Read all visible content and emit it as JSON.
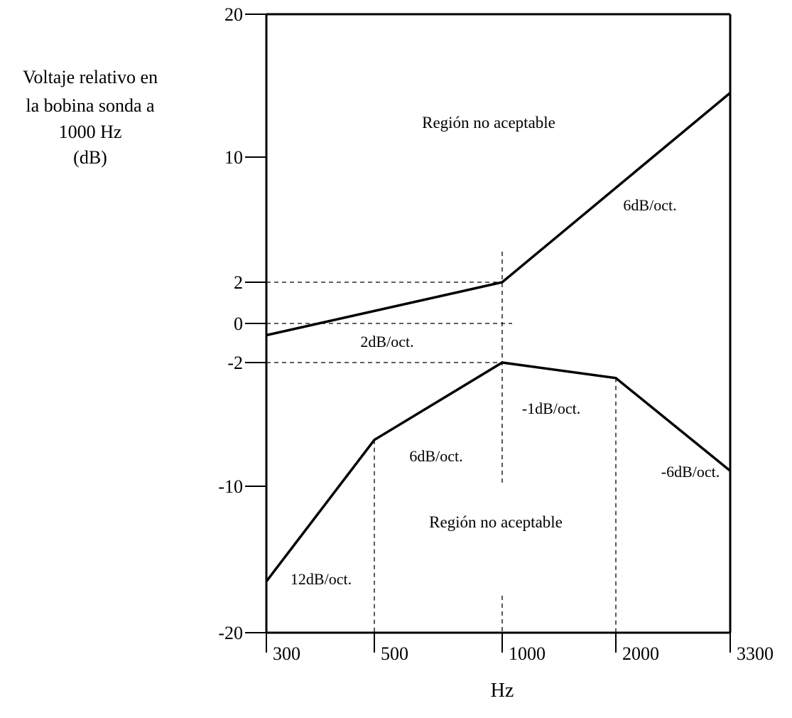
{
  "chart_data": {
    "type": "line",
    "ylabel_lines": [
      "Voltaje relativo en",
      "la bobina sonda a",
      "1000 Hz",
      "(dB)"
    ],
    "xlabel": "Hz",
    "x_scale": "log",
    "xlim": [
      300,
      3300
    ],
    "ylim": [
      -20,
      20
    ],
    "y_scale": "piecewise",
    "y_ticks": [
      20,
      10,
      2,
      0,
      -2,
      -10,
      -20
    ],
    "x_ticks": [
      300,
      500,
      1000,
      2000,
      3300
    ],
    "y_tick_labels": [
      "20",
      "10",
      "2",
      "0",
      "-2",
      "-10",
      "-20"
    ],
    "x_tick_labels": [
      "300",
      "500",
      "1000",
      "2000",
      "3300"
    ],
    "series": [
      {
        "points": [
          [
            300,
            -0.6
          ],
          [
            1000,
            2
          ],
          [
            3300,
            14.5
          ]
        ]
      },
      {
        "points": [
          [
            300,
            -16.5
          ],
          [
            500,
            -7
          ],
          [
            1000,
            -2
          ],
          [
            2000,
            -3
          ],
          [
            3300,
            -9
          ]
        ]
      }
    ],
    "annotations": {
      "upper_region": "Región no aceptable",
      "lower_region": "Región no aceptable",
      "upper_slope_high": "6dB/oct.",
      "upper_slope_low": "2dB/oct.",
      "lower_slope_1": "12dB/oct.",
      "lower_slope_2": "6dB/oct.",
      "lower_slope_3": "-1dB/oct.",
      "lower_slope_4": "-6dB/oct."
    }
  }
}
